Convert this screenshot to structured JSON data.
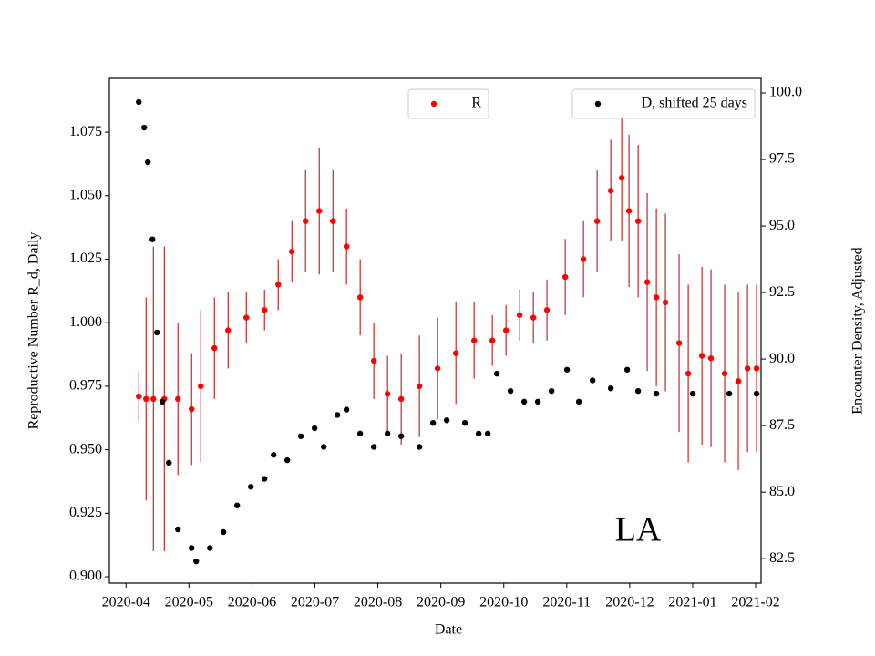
{
  "chart_data": {
    "type": "scatter",
    "annotation": "LA",
    "xlabel": "Date",
    "ylabel": "Reproductive Number R_d, Daily",
    "y2label": "Encounter Density, Adjusted",
    "ylabel_color": "#ff0000",
    "xlim": [
      2020.228,
      2021.0905
    ],
    "ylim": [
      0.8975,
      1.0962
    ],
    "y2lim": [
      81.58,
      100.55
    ],
    "xticks": [
      {
        "value": 2020.25,
        "label": "2020-04"
      },
      {
        "value": 2020.3333,
        "label": "2020-05"
      },
      {
        "value": 2020.4167,
        "label": "2020-06"
      },
      {
        "value": 2020.5,
        "label": "2020-07"
      },
      {
        "value": 2020.5833,
        "label": "2020-08"
      },
      {
        "value": 2020.6667,
        "label": "2020-09"
      },
      {
        "value": 2020.75,
        "label": "2020-10"
      },
      {
        "value": 2020.8333,
        "label": "2020-11"
      },
      {
        "value": 2020.9167,
        "label": "2020-12"
      },
      {
        "value": 2021.0,
        "label": "2021-01"
      },
      {
        "value": 2021.0833,
        "label": "2021-02"
      }
    ],
    "yticks": [
      {
        "value": 0.9,
        "label": "0.900"
      },
      0.925,
      {
        "value": 0.95,
        "label": "0.950"
      },
      0.975,
      {
        "value": 1.0,
        "label": "1.000"
      },
      1.025,
      {
        "value": 1.05,
        "label": "1.050"
      },
      1.075
    ],
    "y2ticks": [
      82.5,
      {
        "value": 85,
        "label": "85.0"
      },
      87.5,
      {
        "value": 90,
        "label": "90.0"
      },
      92.5,
      {
        "value": 95,
        "label": "95.0"
      },
      97.5,
      {
        "value": 100,
        "label": "100.0"
      }
    ],
    "series": [
      {
        "name": "R",
        "color": "#ff0000",
        "error_color": "#b00000",
        "legend_loc": "upper center",
        "x": [
          2020.2669,
          2020.2765,
          2020.2862,
          2020.3007,
          2020.3187,
          2020.3368,
          2020.3489,
          2020.367,
          2020.3851,
          2020.4092,
          2020.4333,
          2020.4514,
          2020.4695,
          2020.4876,
          2020.5057,
          2020.5238,
          2020.5418,
          2020.5599,
          2020.578,
          2020.5961,
          2020.6142,
          2020.6383,
          2020.6624,
          2020.6866,
          2020.7107,
          2020.7348,
          2020.7529,
          2020.771,
          2020.7891,
          2020.8071,
          2020.8313,
          2020.8554,
          2020.8735,
          2020.8916,
          2020.9061,
          2020.9157,
          2020.9278,
          2020.9398,
          2020.9519,
          2020.9639,
          2020.982,
          2020.9941,
          2021.0122,
          2021.0242,
          2021.0423,
          2021.0604,
          2021.0725,
          2021.0845
        ],
        "values": [
          0.971,
          0.97,
          0.97,
          0.97,
          0.97,
          0.966,
          0.975,
          0.99,
          0.997,
          1.002,
          1.005,
          1.015,
          1.028,
          1.04,
          1.044,
          1.04,
          1.03,
          1.01,
          0.985,
          0.972,
          0.97,
          0.975,
          0.982,
          0.988,
          0.993,
          0.993,
          0.997,
          1.003,
          1.002,
          1.005,
          1.018,
          1.025,
          1.04,
          1.052,
          1.057,
          1.044,
          1.04,
          1.016,
          1.01,
          1.008,
          0.992,
          0.98,
          0.987,
          0.986,
          0.98,
          0.977,
          0.982,
          0.982
        ],
        "errors": [
          0.01,
          0.04,
          0.06,
          0.06,
          0.03,
          0.022,
          0.03,
          0.02,
          0.015,
          0.01,
          0.008,
          0.01,
          0.012,
          0.02,
          0.025,
          0.02,
          0.015,
          0.015,
          0.015,
          0.015,
          0.018,
          0.02,
          0.02,
          0.02,
          0.015,
          0.01,
          0.01,
          0.01,
          0.01,
          0.012,
          0.015,
          0.015,
          0.02,
          0.02,
          0.025,
          0.03,
          0.03,
          0.035,
          0.035,
          0.035,
          0.035,
          0.035,
          0.035,
          0.035,
          0.035,
          0.035,
          0.033,
          0.033
        ]
      },
      {
        "name": "D, shifted 25 days",
        "color": "#000000",
        "axis": "y2",
        "legend_loc": "upper right",
        "x": [
          2020.2669,
          2020.2741,
          2020.2789,
          2020.285,
          2020.291,
          2020.2982,
          2020.3067,
          2020.3187,
          2020.3368,
          2020.3429,
          2020.361,
          2020.379,
          2020.3971,
          2020.4152,
          2020.4333,
          2020.4454,
          2020.4635,
          2020.4815,
          2020.4996,
          2020.5117,
          2020.5298,
          2020.5418,
          2020.5599,
          2020.578,
          2020.5961,
          2020.6142,
          2020.6383,
          2020.6564,
          2020.6745,
          2020.6986,
          2020.7167,
          2020.7288,
          2020.7408,
          2020.7589,
          2020.777,
          2020.7951,
          2020.8132,
          2020.8337,
          2020.8494,
          2020.8675,
          2020.8916,
          2020.9133,
          2020.9278,
          2020.9519,
          2021.0001,
          2021.0484,
          2021.0845
        ],
        "values": [
          99.66,
          98.7,
          97.4,
          94.5,
          91.0,
          88.4,
          86.1,
          83.6,
          82.9,
          82.4,
          82.9,
          83.5,
          84.5,
          85.2,
          85.5,
          86.4,
          86.2,
          87.1,
          87.4,
          86.7,
          87.9,
          88.1,
          87.2,
          86.7,
          87.2,
          87.1,
          86.7,
          87.6,
          87.7,
          87.6,
          87.2,
          87.2,
          89.45,
          88.8,
          88.4,
          88.4,
          88.8,
          89.6,
          88.4,
          89.2,
          88.9,
          89.6,
          88.8,
          88.7,
          88.7,
          88.7,
          88.7
        ]
      }
    ]
  }
}
